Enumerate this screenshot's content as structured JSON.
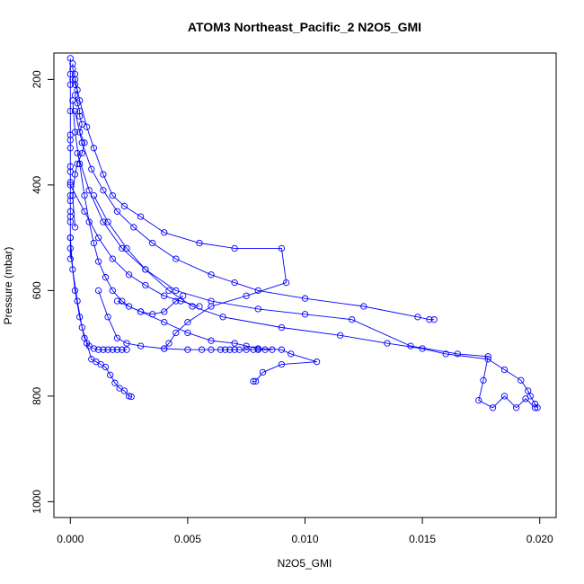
{
  "chart_data": {
    "type": "scatter",
    "title": "ATOM3 Northeast_Pacific_2 N2O5_GMI",
    "xlabel": "N2O5_GMI",
    "ylabel": "Pressure (mbar)",
    "xlim": [
      -0.0007,
      0.0207
    ],
    "ylim": [
      1030,
      150
    ],
    "y_reversed": true,
    "x_ticks": [
      0.0,
      0.005,
      0.01,
      0.015,
      0.02
    ],
    "x_tick_labels": [
      "0.000",
      "0.005",
      "0.010",
      "0.015",
      "0.020"
    ],
    "y_ticks": [
      200,
      400,
      600,
      800,
      1000
    ],
    "y_tick_labels": [
      "200",
      "400",
      "600",
      "800",
      "1000"
    ],
    "grid": false,
    "marker": "open-circle",
    "connect_points": true,
    "color": "#0000ff",
    "series": [
      {
        "x": [
          0.0001,
          0.0001,
          0.0002,
          0.0001,
          0.0002,
          0.0003,
          0.0002,
          0.0003,
          0.0004,
          0.0004,
          0.0005,
          0.0004,
          0.0006,
          0.0005,
          0.0003,
          0.0002,
          0.0001,
          0.0002
        ],
        "y": [
          170,
          180,
          190,
          200,
          210,
          220,
          230,
          245,
          260,
          270,
          285,
          300,
          320,
          340,
          360,
          380,
          420,
          480
        ]
      },
      {
        "x": [
          0.0002,
          0.0004,
          0.0007,
          0.001,
          0.0014,
          0.0018,
          0.0023,
          0.003,
          0.004,
          0.0055,
          0.007,
          0.009,
          0.0092,
          0.0075,
          0.006,
          0.005,
          0.0045,
          0.0042,
          0.004
        ],
        "y": [
          200,
          240,
          290,
          330,
          380,
          420,
          440,
          460,
          490,
          510,
          520,
          520,
          585,
          610,
          630,
          660,
          680,
          700,
          710
        ]
      },
      {
        "x": [
          0.0002,
          0.0005,
          0.0009,
          0.0014,
          0.002,
          0.0027,
          0.0035,
          0.0045,
          0.006,
          0.007,
          0.008,
          0.01,
          0.0125,
          0.0148,
          0.0153,
          0.0155
        ],
        "y": [
          260,
          320,
          370,
          410,
          450,
          480,
          510,
          540,
          570,
          585,
          600,
          615,
          630,
          650,
          655,
          655
        ]
      },
      {
        "x": [
          0.001,
          0.0016,
          0.0024,
          0.0032,
          0.0042,
          0.0052,
          0.0065,
          0.009,
          0.0115,
          0.0135,
          0.015,
          0.016,
          0.0178,
          0.0185,
          0.0192,
          0.0195,
          0.0196,
          0.0198,
          0.0199
        ],
        "y": [
          420,
          470,
          520,
          560,
          600,
          630,
          650,
          670,
          685,
          700,
          710,
          720,
          730,
          750,
          770,
          790,
          800,
          815,
          822
        ]
      },
      {
        "x": [
          0.0003,
          0.0008,
          0.0014,
          0.0022,
          0.0032,
          0.0045,
          0.006,
          0.008,
          0.01,
          0.012,
          0.0145,
          0.0165,
          0.0178,
          0.0176,
          0.0174,
          0.018,
          0.0185,
          0.019,
          0.0194,
          0.0198
        ],
        "y": [
          340,
          410,
          470,
          520,
          560,
          600,
          620,
          635,
          645,
          655,
          705,
          720,
          725,
          770,
          808,
          822,
          800,
          822,
          805,
          822
        ]
      },
      {
        "x": [
          0.002,
          0.003,
          0.004,
          0.005,
          0.006,
          0.007,
          0.0075,
          0.008,
          0.009,
          0.0094,
          0.0105,
          0.009,
          0.0082,
          0.0079,
          0.0078
        ],
        "y": [
          620,
          640,
          660,
          680,
          695,
          700,
          705,
          710,
          712,
          720,
          735,
          740,
          755,
          772,
          772
        ]
      },
      {
        "x": [
          0.0012,
          0.0016,
          0.002,
          0.0024,
          0.003,
          0.004,
          0.005,
          0.0056,
          0.006,
          0.0064,
          0.0066,
          0.0068,
          0.007,
          0.0072,
          0.0075,
          0.0078,
          0.008,
          0.0083,
          0.0086
        ],
        "y": [
          600,
          650,
          690,
          700,
          705,
          710,
          712,
          712,
          712,
          712,
          712,
          712,
          712,
          712,
          712,
          712,
          712,
          712,
          712
        ]
      },
      {
        "x": [
          0.0,
          0.0002,
          0.0004,
          0.0006,
          0.0008,
          0.001,
          0.0012,
          0.0014,
          0.0016,
          0.0018,
          0.002,
          0.0022,
          0.0024
        ],
        "y": [
          520,
          600,
          650,
          690,
          705,
          710,
          712,
          712,
          712,
          712,
          712,
          712,
          712
        ]
      },
      {
        "x": [
          0.0,
          0.0001,
          0.0003,
          0.0005,
          0.0007,
          0.0009,
          0.0011,
          0.0013,
          0.0015,
          0.0017,
          0.0019,
          0.0021,
          0.0023,
          0.0025,
          0.0026
        ],
        "y": [
          500,
          560,
          620,
          670,
          700,
          730,
          735,
          740,
          745,
          760,
          775,
          785,
          790,
          800,
          801
        ]
      },
      {
        "x": [
          0.0001,
          0.0002,
          0.0004,
          0.0006,
          0.0008,
          0.001,
          0.0012,
          0.0015,
          0.0018,
          0.0022,
          0.0025,
          0.003,
          0.0035,
          0.004,
          0.0045,
          0.0048
        ],
        "y": [
          240,
          300,
          360,
          420,
          470,
          510,
          545,
          575,
          600,
          620,
          630,
          640,
          645,
          640,
          620,
          610
        ]
      },
      {
        "x": [
          0.0,
          0.0006,
          0.0012,
          0.0018,
          0.0025,
          0.0032,
          0.004,
          0.0047,
          0.0055
        ],
        "y": [
          400,
          450,
          500,
          540,
          570,
          590,
          610,
          620,
          630
        ]
      },
      {
        "x": [
          0.0,
          0.0,
          0.0,
          0.0,
          0.0,
          0.0,
          0.0,
          0.0,
          0.0,
          0.0,
          0.0,
          0.0,
          0.0,
          0.0,
          0.0,
          0.0,
          0.0
        ],
        "y": [
          160,
          190,
          210,
          260,
          305,
          315,
          330,
          365,
          375,
          395,
          420,
          430,
          450,
          460,
          470,
          500,
          540
        ]
      }
    ]
  }
}
